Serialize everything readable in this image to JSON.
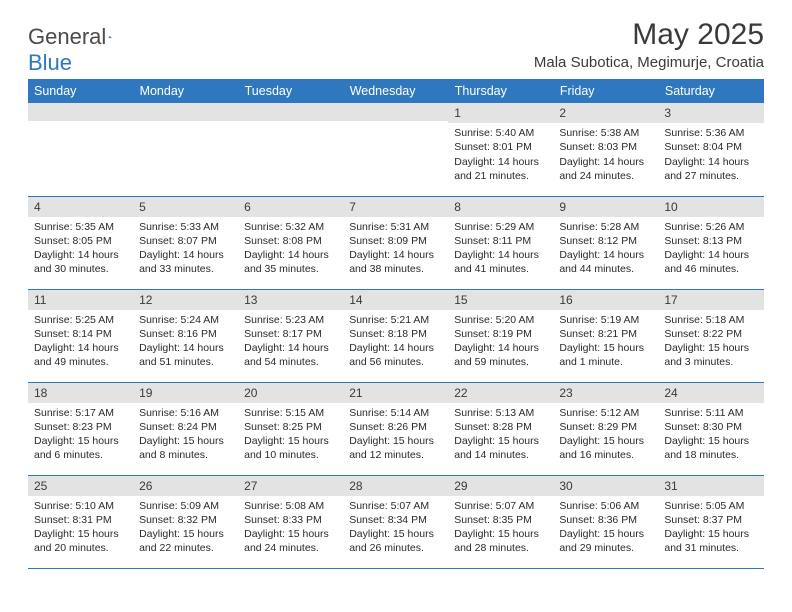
{
  "brand": {
    "name_part1": "General",
    "name_part2": "Blue"
  },
  "title": "May 2025",
  "location": "Mala Subotica, Megimurje, Croatia",
  "colors": {
    "header_bg": "#2f78bf",
    "header_text": "#ffffff",
    "daynum_bg": "#e3e3e3",
    "border": "#2f78bf",
    "text": "#2a2a2a",
    "title_text": "#3a3a3a"
  },
  "days_of_week": [
    "Sunday",
    "Monday",
    "Tuesday",
    "Wednesday",
    "Thursday",
    "Friday",
    "Saturday"
  ],
  "weeks": [
    [
      null,
      null,
      null,
      null,
      {
        "n": "1",
        "sunrise": "5:40 AM",
        "sunset": "8:01 PM",
        "daylight": "14 hours and 21 minutes."
      },
      {
        "n": "2",
        "sunrise": "5:38 AM",
        "sunset": "8:03 PM",
        "daylight": "14 hours and 24 minutes."
      },
      {
        "n": "3",
        "sunrise": "5:36 AM",
        "sunset": "8:04 PM",
        "daylight": "14 hours and 27 minutes."
      }
    ],
    [
      {
        "n": "4",
        "sunrise": "5:35 AM",
        "sunset": "8:05 PM",
        "daylight": "14 hours and 30 minutes."
      },
      {
        "n": "5",
        "sunrise": "5:33 AM",
        "sunset": "8:07 PM",
        "daylight": "14 hours and 33 minutes."
      },
      {
        "n": "6",
        "sunrise": "5:32 AM",
        "sunset": "8:08 PM",
        "daylight": "14 hours and 35 minutes."
      },
      {
        "n": "7",
        "sunrise": "5:31 AM",
        "sunset": "8:09 PM",
        "daylight": "14 hours and 38 minutes."
      },
      {
        "n": "8",
        "sunrise": "5:29 AM",
        "sunset": "8:11 PM",
        "daylight": "14 hours and 41 minutes."
      },
      {
        "n": "9",
        "sunrise": "5:28 AM",
        "sunset": "8:12 PM",
        "daylight": "14 hours and 44 minutes."
      },
      {
        "n": "10",
        "sunrise": "5:26 AM",
        "sunset": "8:13 PM",
        "daylight": "14 hours and 46 minutes."
      }
    ],
    [
      {
        "n": "11",
        "sunrise": "5:25 AM",
        "sunset": "8:14 PM",
        "daylight": "14 hours and 49 minutes."
      },
      {
        "n": "12",
        "sunrise": "5:24 AM",
        "sunset": "8:16 PM",
        "daylight": "14 hours and 51 minutes."
      },
      {
        "n": "13",
        "sunrise": "5:23 AM",
        "sunset": "8:17 PM",
        "daylight": "14 hours and 54 minutes."
      },
      {
        "n": "14",
        "sunrise": "5:21 AM",
        "sunset": "8:18 PM",
        "daylight": "14 hours and 56 minutes."
      },
      {
        "n": "15",
        "sunrise": "5:20 AM",
        "sunset": "8:19 PM",
        "daylight": "14 hours and 59 minutes."
      },
      {
        "n": "16",
        "sunrise": "5:19 AM",
        "sunset": "8:21 PM",
        "daylight": "15 hours and 1 minute."
      },
      {
        "n": "17",
        "sunrise": "5:18 AM",
        "sunset": "8:22 PM",
        "daylight": "15 hours and 3 minutes."
      }
    ],
    [
      {
        "n": "18",
        "sunrise": "5:17 AM",
        "sunset": "8:23 PM",
        "daylight": "15 hours and 6 minutes."
      },
      {
        "n": "19",
        "sunrise": "5:16 AM",
        "sunset": "8:24 PM",
        "daylight": "15 hours and 8 minutes."
      },
      {
        "n": "20",
        "sunrise": "5:15 AM",
        "sunset": "8:25 PM",
        "daylight": "15 hours and 10 minutes."
      },
      {
        "n": "21",
        "sunrise": "5:14 AM",
        "sunset": "8:26 PM",
        "daylight": "15 hours and 12 minutes."
      },
      {
        "n": "22",
        "sunrise": "5:13 AM",
        "sunset": "8:28 PM",
        "daylight": "15 hours and 14 minutes."
      },
      {
        "n": "23",
        "sunrise": "5:12 AM",
        "sunset": "8:29 PM",
        "daylight": "15 hours and 16 minutes."
      },
      {
        "n": "24",
        "sunrise": "5:11 AM",
        "sunset": "8:30 PM",
        "daylight": "15 hours and 18 minutes."
      }
    ],
    [
      {
        "n": "25",
        "sunrise": "5:10 AM",
        "sunset": "8:31 PM",
        "daylight": "15 hours and 20 minutes."
      },
      {
        "n": "26",
        "sunrise": "5:09 AM",
        "sunset": "8:32 PM",
        "daylight": "15 hours and 22 minutes."
      },
      {
        "n": "27",
        "sunrise": "5:08 AM",
        "sunset": "8:33 PM",
        "daylight": "15 hours and 24 minutes."
      },
      {
        "n": "28",
        "sunrise": "5:07 AM",
        "sunset": "8:34 PM",
        "daylight": "15 hours and 26 minutes."
      },
      {
        "n": "29",
        "sunrise": "5:07 AM",
        "sunset": "8:35 PM",
        "daylight": "15 hours and 28 minutes."
      },
      {
        "n": "30",
        "sunrise": "5:06 AM",
        "sunset": "8:36 PM",
        "daylight": "15 hours and 29 minutes."
      },
      {
        "n": "31",
        "sunrise": "5:05 AM",
        "sunset": "8:37 PM",
        "daylight": "15 hours and 31 minutes."
      }
    ]
  ],
  "labels": {
    "sunrise": "Sunrise: ",
    "sunset": "Sunset: ",
    "daylight": "Daylight: "
  }
}
